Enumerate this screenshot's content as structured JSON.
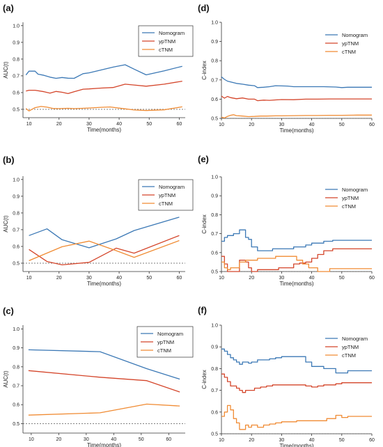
{
  "colors": {
    "nomogram": "#3b78b5",
    "yptnm": "#d4452a",
    "ctnm": "#f08b33",
    "axis": "#333333",
    "reference": "#555555"
  },
  "chart_data": [
    {
      "id": "a",
      "panel_label": "(a)",
      "type": "line",
      "xlabel": "Time(months)",
      "ylabel": "AUC(t)",
      "xlim": [
        8,
        62
      ],
      "ylim": [
        0.45,
        1.02
      ],
      "xticks": [
        10,
        20,
        30,
        40,
        50,
        60
      ],
      "yticks": [
        0.5,
        0.6,
        0.7,
        0.8,
        0.9,
        1.0
      ],
      "step": false,
      "reference_y": 0.5,
      "legend_position": "top-right",
      "legend_style": "boxed",
      "series": [
        {
          "name": "Nomogram",
          "color_key": "nomogram",
          "x": [
            9,
            10,
            12,
            13,
            15,
            17,
            19,
            21,
            23,
            25,
            28,
            30,
            34,
            38,
            42,
            45,
            49,
            55,
            61
          ],
          "y": [
            0.705,
            0.728,
            0.728,
            0.71,
            0.703,
            0.692,
            0.685,
            0.69,
            0.686,
            0.685,
            0.713,
            0.718,
            0.735,
            0.752,
            0.766,
            0.74,
            0.706,
            0.73,
            0.757
          ]
        },
        {
          "name": "ypTNM",
          "color_key": "yptnm",
          "x": [
            9,
            10,
            12,
            15,
            17,
            19,
            21,
            23,
            25,
            28,
            30,
            34,
            38,
            42,
            45,
            49,
            55,
            61
          ],
          "y": [
            0.609,
            0.614,
            0.614,
            0.605,
            0.597,
            0.607,
            0.602,
            0.594,
            0.605,
            0.62,
            0.622,
            0.627,
            0.63,
            0.65,
            0.645,
            0.638,
            0.65,
            0.668
          ]
        },
        {
          "name": "cTNM",
          "color_key": "ctnm",
          "x": [
            9,
            10,
            12,
            14,
            16,
            18,
            20,
            23,
            25,
            28,
            30,
            34,
            37,
            42,
            45,
            49,
            55,
            61
          ],
          "y": [
            0.505,
            0.49,
            0.51,
            0.517,
            0.513,
            0.505,
            0.504,
            0.506,
            0.504,
            0.506,
            0.508,
            0.512,
            0.514,
            0.503,
            0.496,
            0.493,
            0.497,
            0.515
          ]
        }
      ]
    },
    {
      "id": "b",
      "panel_label": "(b)",
      "type": "line",
      "xlabel": "Time(months)",
      "ylabel": "AUC(t)",
      "xlim": [
        8,
        62
      ],
      "ylim": [
        0.45,
        1.02
      ],
      "xticks": [
        10,
        20,
        30,
        40,
        50,
        60
      ],
      "yticks": [
        0.5,
        0.6,
        0.7,
        0.8,
        0.9,
        1.0
      ],
      "step": false,
      "reference_y": 0.5,
      "legend_position": "top-right",
      "legend_style": "boxed",
      "series": [
        {
          "name": "Nomogram",
          "color_key": "nomogram",
          "x": [
            10,
            16,
            21,
            30,
            39,
            45,
            60
          ],
          "y": [
            0.665,
            0.705,
            0.64,
            0.592,
            0.645,
            0.695,
            0.775
          ]
        },
        {
          "name": "ypTNM",
          "color_key": "yptnm",
          "x": [
            10,
            16,
            21,
            30,
            39,
            45,
            60
          ],
          "y": [
            0.582,
            0.51,
            0.49,
            0.505,
            0.59,
            0.56,
            0.665
          ]
        },
        {
          "name": "cTNM",
          "color_key": "ctnm",
          "x": [
            10,
            21,
            30,
            39,
            45,
            60
          ],
          "y": [
            0.515,
            0.598,
            0.632,
            0.575,
            0.535,
            0.635
          ]
        }
      ]
    },
    {
      "id": "c",
      "panel_label": "(c)",
      "type": "line",
      "xlabel": "Time(months)",
      "ylabel": "AUC(t)",
      "xlim": [
        7,
        66
      ],
      "ylim": [
        0.45,
        1.02
      ],
      "xticks": [
        10,
        20,
        30,
        40,
        50,
        60
      ],
      "yticks": [
        0.5,
        0.6,
        0.7,
        0.8,
        0.9,
        1.0
      ],
      "step": false,
      "reference_y": 0.5,
      "legend_position": "top-right",
      "legend_style": "boxed",
      "series": [
        {
          "name": "Nomogram",
          "color_key": "nomogram",
          "x": [
            9,
            35,
            52,
            64
          ],
          "y": [
            0.89,
            0.88,
            0.79,
            0.735
          ]
        },
        {
          "name": "ypTNM",
          "color_key": "yptnm",
          "x": [
            9,
            35,
            52,
            64
          ],
          "y": [
            0.78,
            0.745,
            0.727,
            0.667
          ]
        },
        {
          "name": "cTNM",
          "color_key": "ctnm",
          "x": [
            9,
            35,
            52,
            64
          ],
          "y": [
            0.545,
            0.557,
            0.603,
            0.593
          ]
        }
      ]
    },
    {
      "id": "d",
      "panel_label": "(d)",
      "type": "line",
      "xlabel": "Time(months)",
      "ylabel": "C-index",
      "xlim": [
        10,
        60
      ],
      "ylim": [
        0.5,
        1.0
      ],
      "xticks": [
        10,
        20,
        30,
        40,
        50,
        60
      ],
      "yticks": [
        0.5,
        0.6,
        0.7,
        0.8,
        0.9,
        1.0
      ],
      "step": false,
      "reference_y": 0.5,
      "legend_position": "top-right",
      "legend_style": "plain",
      "series": [
        {
          "name": "Nomogram",
          "color_key": "nomogram",
          "x": [
            10,
            11,
            12,
            13,
            15,
            17,
            19,
            21,
            22,
            24,
            26,
            28,
            30,
            32,
            34,
            36,
            40,
            44,
            48,
            50,
            52,
            55,
            60
          ],
          "y": [
            0.716,
            0.703,
            0.694,
            0.69,
            0.682,
            0.678,
            0.673,
            0.67,
            0.66,
            0.662,
            0.665,
            0.67,
            0.669,
            0.668,
            0.665,
            0.665,
            0.665,
            0.665,
            0.663,
            0.66,
            0.662,
            0.662,
            0.662
          ]
        },
        {
          "name": "ypTNM",
          "color_key": "yptnm",
          "x": [
            10,
            11,
            12,
            13,
            15,
            17,
            19,
            21,
            22,
            24,
            26,
            28,
            30,
            34,
            38,
            42,
            46,
            50,
            55,
            60
          ],
          "y": [
            0.616,
            0.605,
            0.614,
            0.608,
            0.602,
            0.606,
            0.6,
            0.6,
            0.592,
            0.595,
            0.594,
            0.596,
            0.598,
            0.597,
            0.6,
            0.6,
            0.601,
            0.601,
            0.601,
            0.601
          ]
        },
        {
          "name": "cTNM",
          "color_key": "ctnm",
          "x": [
            10,
            11,
            12,
            13,
            14,
            15,
            17,
            19,
            21,
            23,
            25,
            28,
            30,
            34,
            38,
            42,
            46,
            50,
            55,
            60
          ],
          "y": [
            0.506,
            0.502,
            0.51,
            0.516,
            0.519,
            0.514,
            0.512,
            0.509,
            0.51,
            0.512,
            0.512,
            0.513,
            0.513,
            0.514,
            0.515,
            0.515,
            0.516,
            0.516,
            0.517,
            0.517
          ]
        }
      ]
    },
    {
      "id": "e",
      "panel_label": "(e)",
      "type": "line",
      "xlabel": "Time(months)",
      "ylabel": "C-index",
      "xlim": [
        10,
        60
      ],
      "ylim": [
        0.5,
        1.0
      ],
      "xticks": [
        10,
        20,
        30,
        40,
        50,
        60
      ],
      "yticks": [
        0.5,
        0.6,
        0.7,
        0.8,
        0.9,
        1.0
      ],
      "step": true,
      "reference_y": 0.5,
      "legend_position": "top-right",
      "legend_style": "plain",
      "series": [
        {
          "name": "Nomogram",
          "color_key": "nomogram",
          "x": [
            10,
            11,
            12,
            14,
            16,
            17,
            18,
            19,
            20,
            22,
            25,
            27,
            34,
            36,
            38,
            40,
            42,
            44,
            47,
            60
          ],
          "y": [
            0.66,
            0.68,
            0.69,
            0.7,
            0.72,
            0.72,
            0.68,
            0.67,
            0.63,
            0.61,
            0.61,
            0.62,
            0.63,
            0.63,
            0.64,
            0.65,
            0.65,
            0.66,
            0.665,
            0.665
          ]
        },
        {
          "name": "ypTNM",
          "color_key": "yptnm",
          "x": [
            10,
            11,
            12,
            13,
            16,
            17,
            18,
            19,
            20,
            22,
            24,
            29,
            34,
            36,
            38,
            40,
            42,
            44,
            47,
            60
          ],
          "y": [
            0.58,
            0.54,
            0.5,
            0.5,
            0.56,
            0.56,
            0.55,
            0.52,
            0.5,
            0.51,
            0.51,
            0.52,
            0.54,
            0.545,
            0.55,
            0.57,
            0.59,
            0.61,
            0.62,
            0.62
          ]
        },
        {
          "name": "cTNM",
          "color_key": "ctnm",
          "x": [
            10,
            11,
            12,
            13,
            16,
            17,
            18,
            19,
            20,
            22,
            25,
            28,
            34,
            35,
            37,
            39,
            42,
            44,
            46,
            60
          ],
          "y": [
            0.55,
            0.52,
            0.51,
            0.52,
            0.55,
            0.55,
            0.56,
            0.56,
            0.56,
            0.57,
            0.57,
            0.58,
            0.58,
            0.56,
            0.54,
            0.52,
            0.5,
            0.5,
            0.515,
            0.515
          ]
        }
      ]
    },
    {
      "id": "f",
      "panel_label": "(f)",
      "type": "line",
      "xlabel": "Time(months)",
      "ylabel": "C-index",
      "xlim": [
        10,
        60
      ],
      "ylim": [
        0.5,
        1.0
      ],
      "xticks": [
        10,
        20,
        30,
        40,
        50,
        60
      ],
      "yticks": [
        0.5,
        0.6,
        0.7,
        0.8,
        0.9,
        1.0
      ],
      "step": true,
      "reference_y": 0.5,
      "legend_position": "top-right",
      "legend_style": "plain",
      "series": [
        {
          "name": "Nomogram",
          "color_key": "nomogram",
          "x": [
            10,
            11,
            12,
            13,
            14,
            15,
            16,
            17,
            18,
            19,
            20,
            22,
            24,
            26,
            28,
            30,
            36,
            38,
            40,
            42,
            44,
            46,
            48,
            50,
            52,
            60
          ],
          "y": [
            0.89,
            0.88,
            0.865,
            0.85,
            0.84,
            0.83,
            0.82,
            0.83,
            0.83,
            0.825,
            0.83,
            0.84,
            0.84,
            0.845,
            0.85,
            0.855,
            0.855,
            0.83,
            0.81,
            0.81,
            0.8,
            0.8,
            0.78,
            0.78,
            0.79,
            0.79
          ]
        },
        {
          "name": "ypTNM",
          "color_key": "yptnm",
          "x": [
            10,
            11,
            12,
            13,
            14,
            15,
            16,
            17,
            18,
            19,
            21,
            23,
            25,
            27,
            30,
            36,
            38,
            40,
            42,
            44,
            46,
            48,
            50,
            52,
            60
          ],
          "y": [
            0.775,
            0.76,
            0.74,
            0.72,
            0.72,
            0.71,
            0.7,
            0.69,
            0.7,
            0.7,
            0.71,
            0.715,
            0.72,
            0.725,
            0.725,
            0.725,
            0.72,
            0.715,
            0.72,
            0.725,
            0.725,
            0.73,
            0.735,
            0.735,
            0.735
          ]
        },
        {
          "name": "cTNM",
          "color_key": "ctnm",
          "x": [
            10,
            11,
            12,
            13,
            14,
            15,
            16,
            17,
            18,
            19,
            20,
            22,
            24,
            26,
            28,
            30,
            35,
            40,
            45,
            48,
            50,
            52,
            60
          ],
          "y": [
            0.58,
            0.6,
            0.63,
            0.61,
            0.57,
            0.55,
            0.52,
            0.52,
            0.54,
            0.53,
            0.54,
            0.53,
            0.54,
            0.545,
            0.55,
            0.555,
            0.56,
            0.56,
            0.57,
            0.585,
            0.575,
            0.58,
            0.58
          ]
        }
      ]
    }
  ]
}
